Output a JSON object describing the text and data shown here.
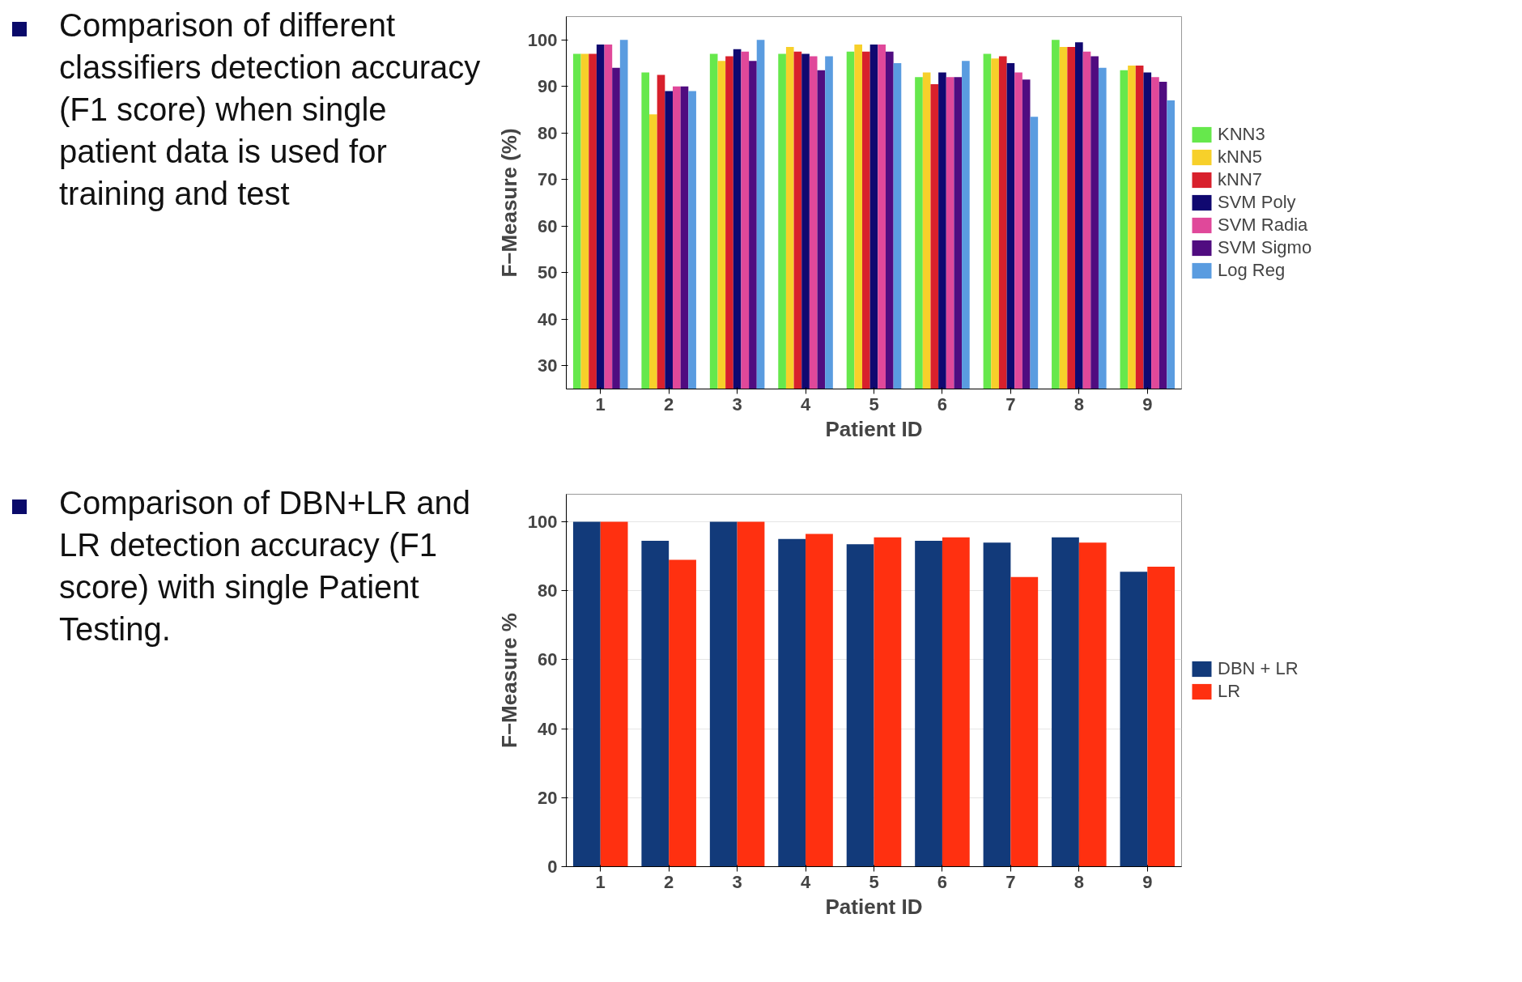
{
  "chart_data": [
    {
      "type": "bar",
      "annotations": [
        "Comparison of different classifiers detection accuracy (F1 score) when single patient data is used for training and test"
      ],
      "xlabel": "Patient ID",
      "ylabel": "F−Measure (%)",
      "categories": [
        "1",
        "2",
        "3",
        "4",
        "5",
        "6",
        "7",
        "8",
        "9"
      ],
      "ylim": [
        25,
        105
      ],
      "yticks": [
        30,
        40,
        50,
        60,
        70,
        80,
        90,
        100
      ],
      "grid": false,
      "legend": "right",
      "series": [
        {
          "name": "KNN3",
          "color": "#66e84c",
          "values": [
            97,
            93,
            97,
            97,
            97.5,
            92,
            97,
            100,
            93.5
          ]
        },
        {
          "name": "kNN5",
          "color": "#f7d02a",
          "values": [
            97,
            84,
            95.5,
            98.5,
            99,
            93,
            96,
            98.5,
            94.5
          ]
        },
        {
          "name": "kNN7",
          "color": "#d8202c",
          "values": [
            97,
            92.5,
            96.5,
            97.5,
            97.5,
            90.5,
            96.5,
            98.5,
            94.5
          ]
        },
        {
          "name": "SVM Poly",
          "color": "#100870",
          "values": [
            99,
            89,
            98,
            97,
            99,
            93,
            95,
            99.5,
            93
          ]
        },
        {
          "name": "SVM Radia",
          "color": "#e0489a",
          "values": [
            99,
            90,
            97.5,
            96.5,
            99,
            92,
            93,
            97.5,
            92
          ]
        },
        {
          "name": "SVM Sigmo",
          "color": "#500c80",
          "values": [
            94,
            90,
            95.5,
            93.5,
            97.5,
            92,
            91.5,
            96.5,
            91
          ]
        },
        {
          "name": "Log Reg",
          "color": "#5a9ce0",
          "values": [
            100,
            89,
            100,
            96.5,
            95,
            95.5,
            83.5,
            94,
            87
          ]
        }
      ]
    },
    {
      "type": "bar",
      "annotations": [
        "Comparison of DBN+LR and LR detection accuracy (F1 score) with single Patient Testing."
      ],
      "xlabel": "Patient ID",
      "ylabel": "F−Measure %",
      "categories": [
        "1",
        "2",
        "3",
        "4",
        "5",
        "6",
        "7",
        "8",
        "9"
      ],
      "ylim": [
        0,
        108
      ],
      "yticks": [
        0,
        20,
        40,
        60,
        80,
        100
      ],
      "grid": "y",
      "legend": "right",
      "series": [
        {
          "name": "DBN + LR",
          "color": "#123a7a",
          "values": [
            100,
            94.5,
            100,
            95,
            93.5,
            94.5,
            94,
            95.5,
            85.5
          ]
        },
        {
          "name": "LR",
          "color": "#ff3010",
          "values": [
            100,
            89,
            100,
            96.5,
            95.5,
            95.5,
            84,
            94,
            87
          ]
        }
      ]
    }
  ]
}
